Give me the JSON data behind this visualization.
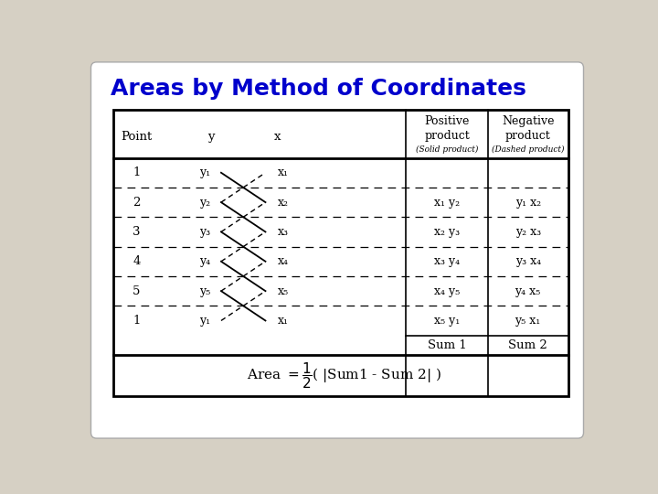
{
  "title": "Areas by Method of Coordinates",
  "title_color": "#0000CC",
  "title_fontsize": 18,
  "bg_color": "#D6D0C4",
  "table_bg": "#FFFFFF",
  "points": [
    "1",
    "2",
    "3",
    "4",
    "5",
    "1"
  ],
  "y_vals": [
    "y₁",
    "y₂",
    "y₃",
    "y₄",
    "y₅",
    "y₁"
  ],
  "x_vals": [
    "x₁",
    "x₂",
    "x₃",
    "x₄",
    "x₅",
    "x₁"
  ],
  "pos_products": [
    "",
    "x₁ y₂",
    "x₂ y₃",
    "x₃ y₄",
    "x₄ y₅",
    "x₅ y₁"
  ],
  "neg_products": [
    "",
    "y₁ x₂",
    "y₂ x₃",
    "y₃ x₄",
    "y₄ x₅",
    "y₅ x₁"
  ]
}
